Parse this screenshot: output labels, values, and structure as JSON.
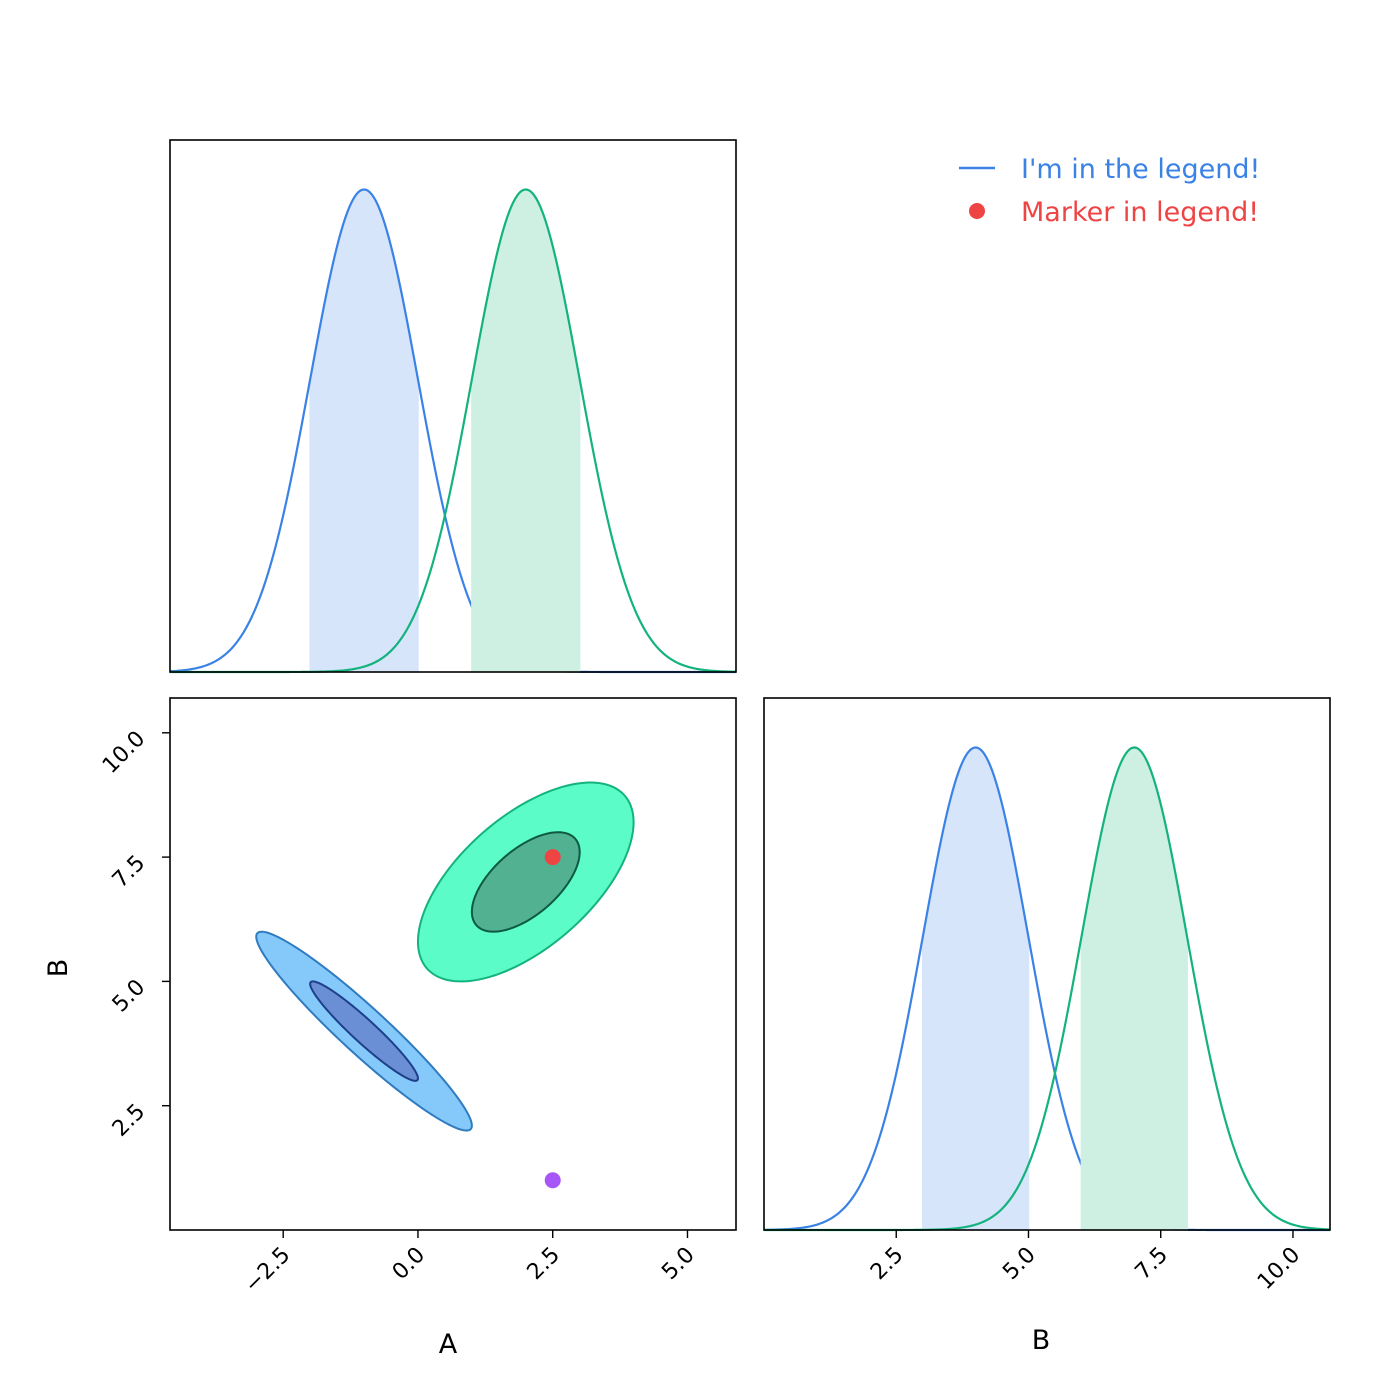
{
  "chart_data": [
    {
      "type": "area",
      "panel": "marginal-A",
      "xlim": [
        -4.6,
        5.9
      ],
      "y_ticks_visible": false,
      "series": [
        {
          "name": "I'm in the legend!",
          "kind": "gaussian",
          "mean": -1.0,
          "sigma": 1.0,
          "color": "#3b82e6",
          "fill": "#d6e5fa",
          "shaded_interval": [
            -2.0,
            0.0
          ]
        },
        {
          "kind": "gaussian",
          "mean": 2.0,
          "sigma": 1.0,
          "color": "#14b37d",
          "fill": "#cef0e3",
          "shaded_interval": [
            1.0,
            3.0
          ]
        }
      ]
    },
    {
      "type": "contour",
      "panel": "joint-A-B",
      "xlabel": "A",
      "ylabel": "B",
      "xlim": [
        -4.6,
        5.9
      ],
      "ylim": [
        0.0,
        10.7
      ],
      "xticks": [
        "−2.5",
        "0.0",
        "2.5",
        "5.0"
      ],
      "xtick_values": [
        -2.5,
        0.0,
        2.5,
        5.0
      ],
      "yticks": [
        "2.5",
        "5.0",
        "7.5",
        "10.0"
      ],
      "ytick_values": [
        2.5,
        5.0,
        7.5,
        10.0
      ],
      "series": [
        {
          "name": "I'm in the legend!",
          "center": [
            -1.0,
            4.0
          ],
          "cov": [
            [
              1.0,
              -0.95
            ],
            [
              -0.95,
              1.0
            ]
          ],
          "levels": [
            {
              "sigma_level": 2.0,
              "fill": "#85c9fb",
              "edge": "#2f7bc0"
            },
            {
              "sigma_level": 1.0,
              "fill": "#6b8fd4",
              "edge": "#1e3f8a"
            }
          ]
        },
        {
          "center": [
            2.0,
            7.0
          ],
          "cov": [
            [
              1.0,
              0.6
            ],
            [
              0.6,
              1.0
            ]
          ],
          "levels": [
            {
              "sigma_level": 2.0,
              "fill": "#5bfcc8",
              "edge": "#14b37d"
            },
            {
              "sigma_level": 1.0,
              "fill": "#52b190",
              "edge": "#0d5a40"
            }
          ]
        }
      ],
      "points": [
        {
          "name": "Marker in legend!",
          "x": 2.5,
          "y": 7.5,
          "color": "#ef4444"
        },
        {
          "x": 2.5,
          "y": 1.0,
          "color": "#a855f7"
        }
      ]
    },
    {
      "type": "area",
      "panel": "marginal-B",
      "xlabel": "B",
      "xlim": [
        0.0,
        10.7
      ],
      "xticks": [
        "2.5",
        "5.0",
        "7.5",
        "10.0"
      ],
      "xtick_values": [
        2.5,
        5.0,
        7.5,
        10.0
      ],
      "y_ticks_visible": false,
      "series": [
        {
          "kind": "gaussian",
          "mean": 4.0,
          "sigma": 1.0,
          "color": "#3b82e6",
          "fill": "#d6e5fa",
          "shaded_interval": [
            3.0,
            5.0
          ]
        },
        {
          "kind": "gaussian",
          "mean": 7.0,
          "sigma": 1.0,
          "color": "#14b37d",
          "fill": "#cef0e3",
          "shaded_interval": [
            6.0,
            8.0
          ]
        }
      ]
    }
  ],
  "legend": {
    "placement": "top-right",
    "items": [
      {
        "label": "I'm in the legend!",
        "kind": "line",
        "color": "#3b82e6"
      },
      {
        "label": "Marker in legend!",
        "kind": "marker",
        "color": "#ef4444"
      }
    ]
  }
}
